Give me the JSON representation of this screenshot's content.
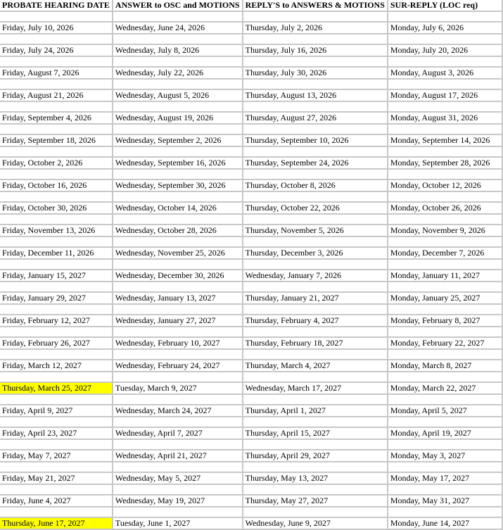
{
  "highlight_color": "#ffff00",
  "headers": [
    "PROBATE HEARING DATE",
    "ANSWER to OSC and MOTIONS",
    "REPLY'S to ANSWERS & MOTIONS",
    "SUR-REPLY (LOC req)"
  ],
  "rows": [
    {
      "cells": [
        "Friday, July 10, 2026",
        "Wednesday, June 24, 2026",
        "Thursday, July 2, 2026",
        "Monday, July 6, 2026"
      ],
      "highlight": false
    },
    {
      "cells": [
        "Friday, July 24, 2026",
        "Wednesday, July 8, 2026",
        "Thursday, July 16, 2026",
        "Monday, July 20, 2026"
      ],
      "highlight": false
    },
    {
      "cells": [
        "Friday, August 7, 2026",
        "Wednesday, July 22, 2026",
        "Thursday, July 30, 2026",
        "Monday, August 3, 2026"
      ],
      "highlight": false
    },
    {
      "cells": [
        "Friday, August 21, 2026",
        "Wednesday, August 5, 2026",
        "Thursday, August 13, 2026",
        "Monday, August 17, 2026"
      ],
      "highlight": false
    },
    {
      "cells": [
        "Friday, September 4, 2026",
        "Wednesday, August 19, 2026",
        "Thursday, August 27, 2026",
        "Monday, August 31, 2026"
      ],
      "highlight": false
    },
    {
      "cells": [
        "Friday, September 18, 2026",
        "Wednesday, September 2, 2026",
        "Thursday, September 10, 2026",
        "Monday, September 14, 2026"
      ],
      "highlight": false
    },
    {
      "cells": [
        "Friday, October 2, 2026",
        "Wednesday, September 16, 2026",
        "Thursday, September 24, 2026",
        "Monday, September 28, 2026"
      ],
      "highlight": false
    },
    {
      "cells": [
        "Friday, October 16, 2026",
        "Wednesday, September 30, 2026",
        "Thursday, October 8, 2026",
        "Monday, October 12, 2026"
      ],
      "highlight": false
    },
    {
      "cells": [
        "Friday, October 30, 2026",
        "Wednesday, October 14, 2026",
        "Thursday, October 22, 2026",
        "Monday, October 26, 2026"
      ],
      "highlight": false
    },
    {
      "cells": [
        "Friday, November 13, 2026",
        "Wednesday, October 28, 2026",
        "Thursday, November 5, 2026",
        "Monday, November 9, 2026"
      ],
      "highlight": false
    },
    {
      "cells": [
        "Friday, December 11, 2026",
        "Wednesday, November 25, 2026",
        "Thursday, December 3, 2026",
        "Monday, December 7, 2026"
      ],
      "highlight": false
    },
    {
      "cells": [
        "Friday, January 15, 2027",
        "Wednesday, December 30, 2026",
        "Wednesday, January 7, 2026",
        "Monday, January 11, 2027"
      ],
      "highlight": false
    },
    {
      "cells": [
        "Friday, January 29, 2027",
        "Wednesday, January 13, 2027",
        "Thursday, January 21, 2027",
        "Monday, January 25, 2027"
      ],
      "highlight": false
    },
    {
      "cells": [
        "Friday, February 12, 2027",
        "Wednesday, January 27, 2027",
        "Thursday, February 4, 2027",
        "Monday, February 8, 2027"
      ],
      "highlight": false
    },
    {
      "cells": [
        "Friday, February 26, 2027",
        "Wednesday, February 10, 2027",
        "Thursday, February 18, 2027",
        "Monday, February 22, 2027"
      ],
      "highlight": false
    },
    {
      "cells": [
        "Friday, March 12, 2027",
        "Wednesday, February 24, 2027",
        "Thursday, March 4, 2027",
        "Monday, March 8, 2027"
      ],
      "highlight": false
    },
    {
      "cells": [
        "Thursday, March 25, 2027",
        "Tuesday, March 9, 2027",
        "Wednesday, March 17, 2027",
        "Monday, March 22, 2027"
      ],
      "highlight": true
    },
    {
      "cells": [
        "Friday, April 9, 2027",
        "Wednesday, March 24, 2027",
        "Thursday, April 1, 2027",
        "Monday, April 5, 2027"
      ],
      "highlight": false
    },
    {
      "cells": [
        "Friday, April 23, 2027",
        "Wednesday, April 7, 2027",
        "Thursday, April 15, 2027",
        "Monday, April 19, 2027"
      ],
      "highlight": false
    },
    {
      "cells": [
        "Friday, May 7, 2027",
        "Wednesday, April 21, 2027",
        "Thursday, April 29, 2027",
        "Monday, May 3, 2027"
      ],
      "highlight": false
    },
    {
      "cells": [
        "Friday, May 21, 2027",
        "Wednesday, May 5, 2027",
        "Thursday, May 13, 2027",
        "Monday, May 17, 2027"
      ],
      "highlight": false
    },
    {
      "cells": [
        "Friday, June 4, 2027",
        "Wednesday, May 19, 2027",
        "Thursday, May 27, 2027",
        "Monday, May 31, 2027"
      ],
      "highlight": false
    },
    {
      "cells": [
        "Thursday, June 17, 2027",
        "Tuesday, June 1, 2027",
        "Wednesday, June 9, 2027",
        "Monday, June 14, 2027"
      ],
      "highlight": true
    }
  ]
}
